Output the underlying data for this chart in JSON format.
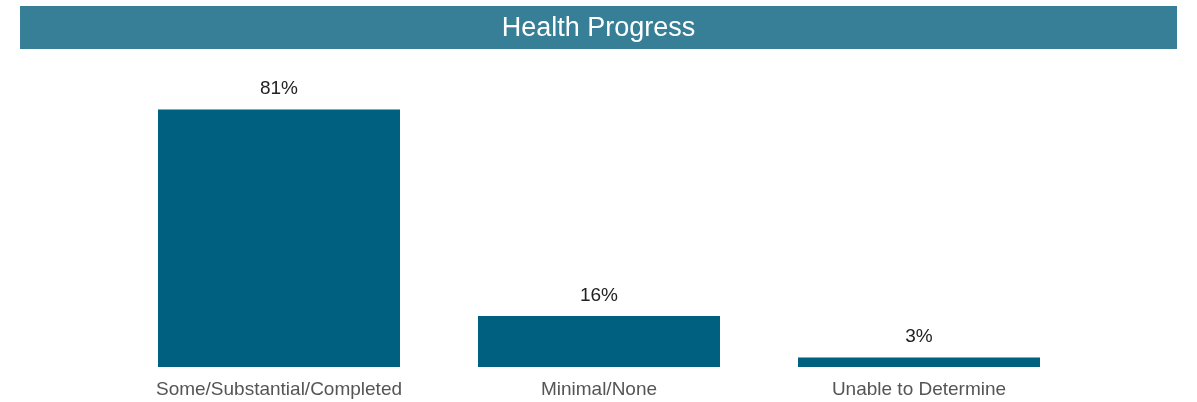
{
  "chart_data": {
    "type": "bar",
    "title": "Health Progress",
    "categories": [
      "Some/Substantial/Completed",
      "Minimal/None",
      "Unable to Determine"
    ],
    "values": [
      81,
      16,
      3
    ],
    "value_labels": [
      "81%",
      "16%",
      "3%"
    ],
    "color": "#00607f"
  }
}
